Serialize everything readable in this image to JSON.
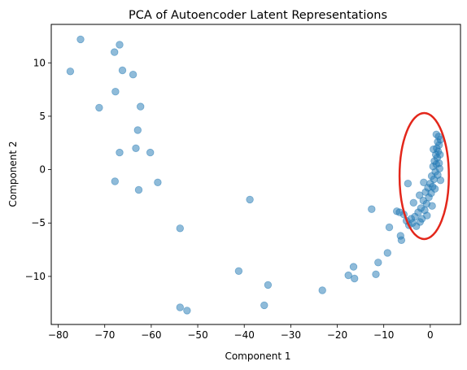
{
  "chart_data": {
    "type": "scatter",
    "title": "PCA of Autoencoder Latent Representations",
    "xlabel": "Component 1",
    "ylabel": "Component 2",
    "xlim": [
      -81.5,
      6.5
    ],
    "ylim": [
      -14.5,
      13.6
    ],
    "xticks": [
      -80,
      -70,
      -60,
      -50,
      -40,
      -30,
      -20,
      -10,
      0
    ],
    "yticks": [
      -10,
      -5,
      0,
      5,
      10
    ],
    "grid": false,
    "point_color": "#1f77b4",
    "point_alpha": 0.5,
    "annotation_color": "#e3271b",
    "annotation": {
      "shape": "ellipse",
      "center": [
        -1.3,
        -0.6
      ],
      "radii": [
        5.3,
        5.9
      ]
    },
    "points": [
      {
        "x": -75.2,
        "y": 12.2
      },
      {
        "x": -66.8,
        "y": 11.7
      },
      {
        "x": -67.9,
        "y": 11.0
      },
      {
        "x": -77.4,
        "y": 9.2
      },
      {
        "x": -66.2,
        "y": 9.3
      },
      {
        "x": -63.9,
        "y": 8.9
      },
      {
        "x": -67.7,
        "y": 7.3
      },
      {
        "x": -71.2,
        "y": 5.8
      },
      {
        "x": -62.3,
        "y": 5.9
      },
      {
        "x": -62.9,
        "y": 3.7
      },
      {
        "x": -63.3,
        "y": 2.0
      },
      {
        "x": -66.8,
        "y": 1.6
      },
      {
        "x": -60.2,
        "y": 1.6
      },
      {
        "x": -67.8,
        "y": -1.1
      },
      {
        "x": -58.6,
        "y": -1.2
      },
      {
        "x": -62.7,
        "y": -1.9
      },
      {
        "x": -53.8,
        "y": -5.5
      },
      {
        "x": -38.8,
        "y": -2.8
      },
      {
        "x": -41.2,
        "y": -9.5
      },
      {
        "x": -34.9,
        "y": -10.8
      },
      {
        "x": -35.7,
        "y": -12.7
      },
      {
        "x": -53.8,
        "y": -12.9
      },
      {
        "x": -52.3,
        "y": -13.2
      },
      {
        "x": -23.2,
        "y": -11.3
      },
      {
        "x": -17.6,
        "y": -9.9
      },
      {
        "x": -16.3,
        "y": -10.2
      },
      {
        "x": -16.5,
        "y": -9.1
      },
      {
        "x": -11.7,
        "y": -9.8
      },
      {
        "x": -11.2,
        "y": -8.7
      },
      {
        "x": -9.2,
        "y": -7.8
      },
      {
        "x": -12.6,
        "y": -3.7
      },
      {
        "x": -8.8,
        "y": -5.4
      },
      {
        "x": -7.2,
        "y": -3.9
      },
      {
        "x": -6.6,
        "y": -4.0
      },
      {
        "x": -6.4,
        "y": -6.2
      },
      {
        "x": -6.2,
        "y": -6.6
      },
      {
        "x": -4.8,
        "y": -1.3
      },
      {
        "x": -5.7,
        "y": -4.2
      },
      {
        "x": -5.1,
        "y": -4.8
      },
      {
        "x": -4.6,
        "y": -5.2
      },
      {
        "x": -4.1,
        "y": -4.6
      },
      {
        "x": -3.8,
        "y": -5.0
      },
      {
        "x": -3.3,
        "y": -4.4
      },
      {
        "x": -3.0,
        "y": -5.3
      },
      {
        "x": -2.6,
        "y": -4.0
      },
      {
        "x": -2.3,
        "y": -2.4
      },
      {
        "x": -2.0,
        "y": -3.6
      },
      {
        "x": -1.8,
        "y": -4.6
      },
      {
        "x": -1.5,
        "y": -2.9
      },
      {
        "x": -1.2,
        "y": -3.8
      },
      {
        "x": -1.0,
        "y": -2.1
      },
      {
        "x": -0.8,
        "y": -3.2
      },
      {
        "x": -0.5,
        "y": -1.7
      },
      {
        "x": -0.3,
        "y": -2.6
      },
      {
        "x": 0.0,
        "y": -1.3
      },
      {
        "x": 0.2,
        "y": -2.2
      },
      {
        "x": 0.3,
        "y": -0.6
      },
      {
        "x": 0.5,
        "y": -1.6
      },
      {
        "x": 0.6,
        "y": 0.3
      },
      {
        "x": 0.8,
        "y": -0.9
      },
      {
        "x": 0.9,
        "y": 0.8
      },
      {
        "x": 1.1,
        "y": -0.2
      },
      {
        "x": 1.2,
        "y": 1.4
      },
      {
        "x": 1.3,
        "y": 0.5
      },
      {
        "x": 1.4,
        "y": 2.0
      },
      {
        "x": 1.5,
        "y": 1.1
      },
      {
        "x": 1.6,
        "y": 2.6
      },
      {
        "x": 1.7,
        "y": 1.7
      },
      {
        "x": 1.8,
        "y": 3.1
      },
      {
        "x": 1.9,
        "y": 2.3
      },
      {
        "x": 2.0,
        "y": 0.1
      },
      {
        "x": 2.1,
        "y": 1.4
      },
      {
        "x": 2.2,
        "y": 2.8
      },
      {
        "x": 0.4,
        "y": -3.4
      },
      {
        "x": -0.7,
        "y": -4.3
      },
      {
        "x": -2.2,
        "y": -4.9
      },
      {
        "x": 1.0,
        "y": -1.8
      },
      {
        "x": 1.6,
        "y": -0.5
      },
      {
        "x": -1.4,
        "y": -1.2
      },
      {
        "x": 0.7,
        "y": 1.9
      },
      {
        "x": 1.9,
        "y": 0.6
      },
      {
        "x": 2.2,
        "y": -1.0
      },
      {
        "x": -3.6,
        "y": -3.1
      },
      {
        "x": 1.3,
        "y": 3.3
      }
    ]
  }
}
